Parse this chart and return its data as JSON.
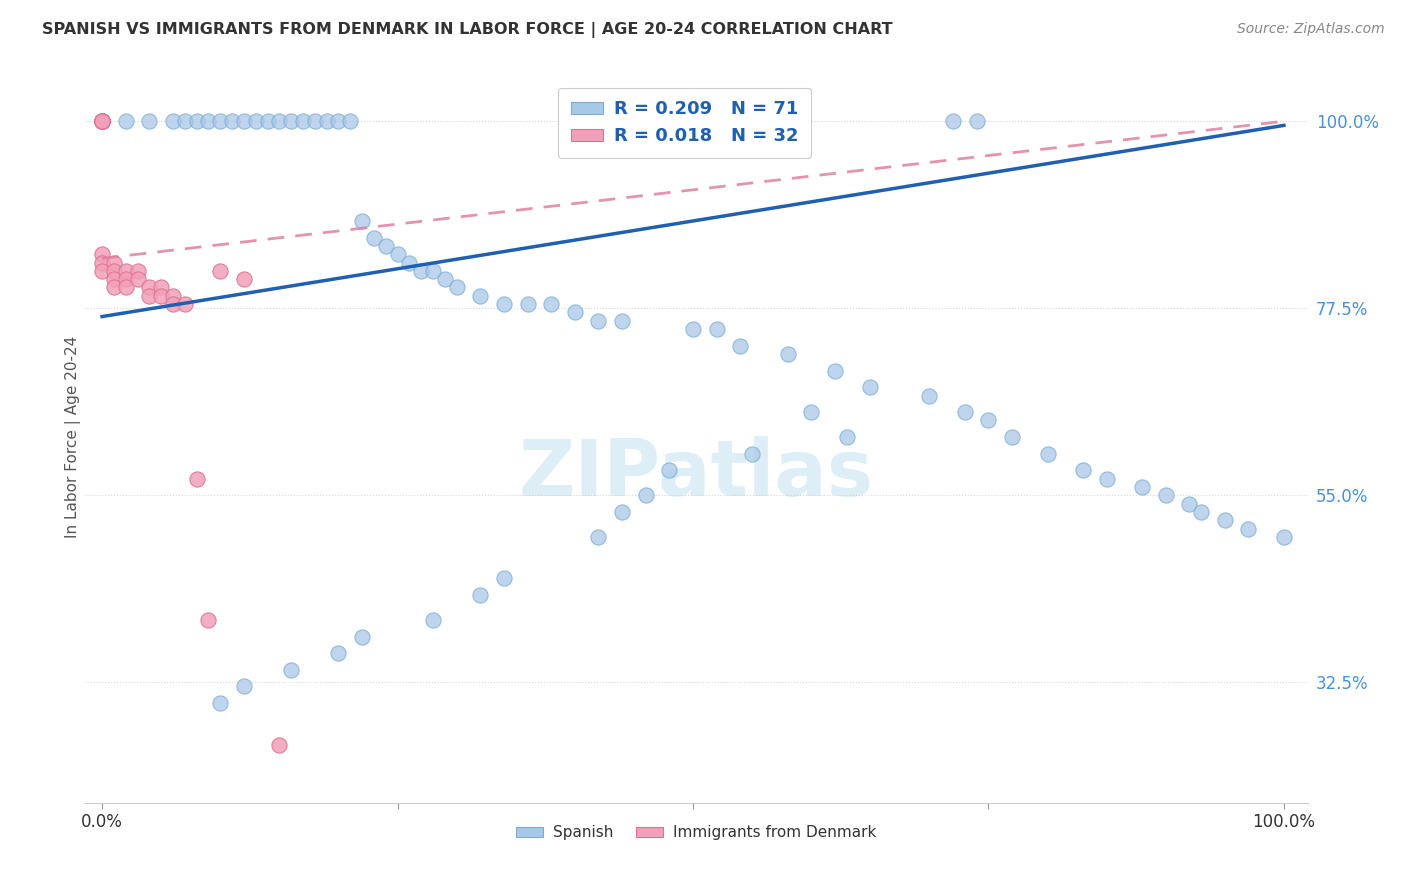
{
  "title": "SPANISH VS IMMIGRANTS FROM DENMARK IN LABOR FORCE | AGE 20-24 CORRELATION CHART",
  "source": "Source: ZipAtlas.com",
  "ylabel": "In Labor Force | Age 20-24",
  "legend_R_blue": "R = 0.209",
  "legend_N_blue": "N = 71",
  "legend_R_pink": "R = 0.018",
  "legend_N_pink": "N = 32",
  "blue_color": "#A8C8E8",
  "blue_edge_color": "#7AACD4",
  "pink_color": "#F0A0B8",
  "pink_edge_color": "#E07090",
  "blue_line_color": "#2060B0",
  "pink_line_color": "#E080A0",
  "background_color": "#FFFFFF",
  "blue_x": [
    0.02,
    0.04,
    0.06,
    0.07,
    0.08,
    0.09,
    0.1,
    0.11,
    0.12,
    0.13,
    0.14,
    0.15,
    0.16,
    0.17,
    0.18,
    0.19,
    0.2,
    0.21,
    0.22,
    0.23,
    0.24,
    0.25,
    0.26,
    0.27,
    0.28,
    0.29,
    0.3,
    0.32,
    0.34,
    0.36,
    0.38,
    0.4,
    0.42,
    0.44,
    0.5,
    0.52,
    0.54,
    0.58,
    0.62,
    0.65,
    0.7,
    0.73,
    0.75,
    0.77,
    0.8,
    0.83,
    0.85,
    0.88,
    0.9,
    0.92,
    0.93,
    0.95,
    0.97,
    1.0,
    0.72,
    0.74,
    0.6,
    0.63,
    0.55,
    0.48,
    0.46,
    0.44,
    0.42,
    0.34,
    0.32,
    0.28,
    0.22,
    0.2,
    0.16,
    0.12,
    0.1
  ],
  "blue_y": [
    1.0,
    1.0,
    1.0,
    1.0,
    1.0,
    1.0,
    1.0,
    1.0,
    1.0,
    1.0,
    1.0,
    1.0,
    1.0,
    1.0,
    1.0,
    1.0,
    1.0,
    1.0,
    0.88,
    0.86,
    0.85,
    0.84,
    0.83,
    0.82,
    0.82,
    0.81,
    0.8,
    0.79,
    0.78,
    0.78,
    0.78,
    0.77,
    0.76,
    0.76,
    0.75,
    0.75,
    0.73,
    0.72,
    0.7,
    0.68,
    0.67,
    0.65,
    0.64,
    0.62,
    0.6,
    0.58,
    0.57,
    0.56,
    0.55,
    0.54,
    0.53,
    0.52,
    0.51,
    0.5,
    1.0,
    1.0,
    0.65,
    0.62,
    0.6,
    0.58,
    0.55,
    0.53,
    0.5,
    0.45,
    0.43,
    0.4,
    0.38,
    0.36,
    0.34,
    0.32,
    0.3
  ],
  "pink_x": [
    0.0,
    0.0,
    0.0,
    0.0,
    0.0,
    0.0,
    0.0,
    0.0,
    0.0,
    0.0,
    0.0,
    0.01,
    0.01,
    0.01,
    0.01,
    0.02,
    0.02,
    0.02,
    0.03,
    0.03,
    0.04,
    0.04,
    0.05,
    0.05,
    0.06,
    0.06,
    0.07,
    0.08,
    0.09,
    0.1,
    0.12,
    0.15
  ],
  "pink_y": [
    1.0,
    1.0,
    1.0,
    1.0,
    1.0,
    1.0,
    1.0,
    1.0,
    0.84,
    0.83,
    0.82,
    0.83,
    0.82,
    0.81,
    0.8,
    0.82,
    0.81,
    0.8,
    0.82,
    0.81,
    0.8,
    0.79,
    0.8,
    0.79,
    0.79,
    0.78,
    0.78,
    0.57,
    0.4,
    0.82,
    0.81,
    0.25
  ],
  "blue_line_x0": 0.0,
  "blue_line_y0": 0.765,
  "blue_line_x1": 1.0,
  "blue_line_y1": 0.995,
  "pink_line_x0": 0.0,
  "pink_line_y0": 0.835,
  "pink_line_x1": 1.0,
  "pink_line_y1": 1.0,
  "xlim": [
    -0.015,
    1.02
  ],
  "ylim": [
    0.18,
    1.06
  ],
  "xticks": [
    0.0,
    0.25,
    0.5,
    0.75,
    1.0
  ],
  "xticklabels": [
    "0.0%",
    "",
    "",
    "",
    "100.0%"
  ],
  "yticks": [
    0.325,
    0.55,
    0.775,
    1.0
  ],
  "yticklabels": [
    "32.5%",
    "55.0%",
    "77.5%",
    "100.0%"
  ]
}
